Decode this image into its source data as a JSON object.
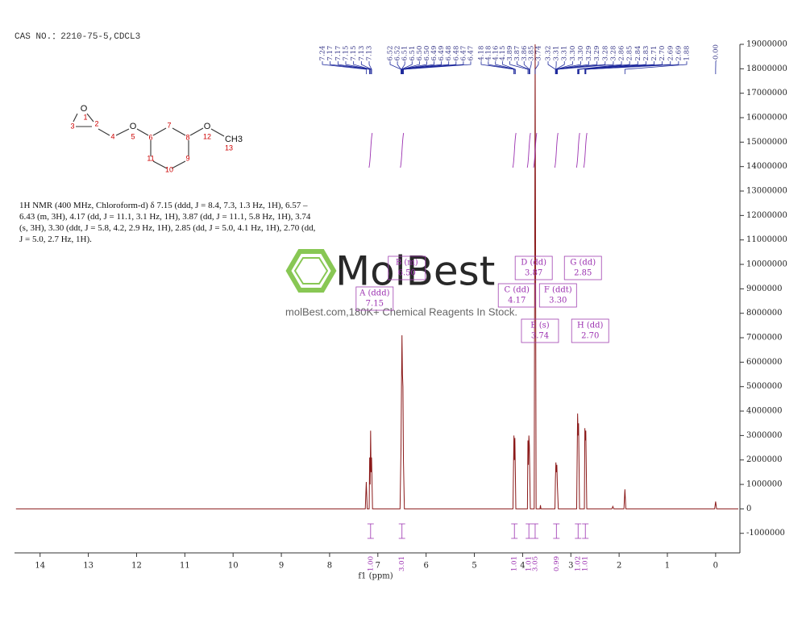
{
  "cas_note": "CAS NO.：2210-75-5,CDCL3",
  "nmr_text": "1H NMR (400 MHz, Chloroform-d) δ 7.15 (ddd, J = 8.4, 7.3, 1.3 Hz, 1H), 6.57 – 6.43 (m, 3H), 4.17 (dd, J = 11.1, 3.1 Hz, 1H), 3.87 (dd, J = 11.1, 5.8 Hz, 1H), 3.74 (s, 3H), 3.30 (ddt, J = 5.8, 4.2, 2.9 Hz, 1H), 2.85 (dd, J = 5.0, 4.1 Hz, 1H), 2.70 (dd, J = 5.0, 2.7 Hz, 1H).",
  "watermark": {
    "brand": "MolBest",
    "tagline": "molBest.com,180K+ Chemical Reagents In Stock."
  },
  "structure": {
    "atoms": [
      "O",
      "1",
      "2",
      "3",
      "4",
      "O",
      "5",
      "6",
      "7",
      "8",
      "9",
      "10",
      "11",
      "O",
      "12",
      "CH3",
      "13"
    ]
  },
  "chart_data": {
    "type": "line",
    "xlabel": "f1 (ppm)",
    "xlim": [
      14.53,
      -0.47
    ],
    "xticks": [
      14,
      13,
      12,
      11,
      10,
      9,
      8,
      7,
      6,
      5,
      4,
      3,
      2,
      1,
      0
    ],
    "ylim": [
      -1800000,
      19000000
    ],
    "yticks": [
      -1000000,
      0,
      1000000,
      2000000,
      3000000,
      4000000,
      5000000,
      6000000,
      7000000,
      8000000,
      9000000,
      10000000,
      11000000,
      12000000,
      13000000,
      14000000,
      15000000,
      16000000,
      17000000,
      18000000,
      19000000
    ],
    "color": "#8b1a1a",
    "x": [
      14.5,
      7.26,
      7.24,
      7.22,
      7.18,
      7.17,
      7.16,
      7.15,
      7.14,
      7.13,
      7.11,
      6.54,
      6.52,
      6.51,
      6.5,
      6.49,
      6.48,
      6.47,
      6.45,
      4.2,
      4.18,
      4.17,
      4.16,
      4.14,
      3.9,
      3.89,
      3.88,
      3.87,
      3.86,
      3.84,
      3.76,
      3.74,
      3.72,
      3.64,
      3.63,
      3.62,
      3.33,
      3.32,
      3.31,
      3.3,
      3.29,
      3.28,
      3.26,
      2.88,
      2.86,
      2.85,
      2.84,
      2.82,
      2.72,
      2.71,
      2.7,
      2.69,
      2.67,
      2.15,
      2.13,
      2.11,
      1.9,
      1.88,
      1.86,
      0.02,
      0,
      -0.02,
      -0.47
    ],
    "values": [
      0,
      0,
      1100000,
      0,
      0,
      2100000,
      1000000,
      3200000,
      1500000,
      2100000,
      0,
      0,
      2500000,
      5000000,
      7100000,
      5500000,
      5000000,
      2000000,
      0,
      0,
      3000000,
      2000000,
      2900000,
      0,
      0,
      2800000,
      1800000,
      3000000,
      2600000,
      0,
      0,
      19000000,
      0,
      0,
      150000,
      0,
      0,
      1200000,
      1900000,
      1500000,
      1800000,
      1000000,
      0,
      0,
      3900000,
      3000000,
      3500000,
      0,
      0,
      3300000,
      2800000,
      3200000,
      0,
      0,
      100000,
      0,
      0,
      800000,
      0,
      0,
      300000,
      0,
      0
    ],
    "peak_groups": [
      [
        "7.24",
        "7.17",
        "7.17",
        "7.15",
        "7.15",
        "7.13",
        "7.13"
      ],
      [
        "6.52",
        "6.52",
        "6.51",
        "6.51",
        "6.50",
        "6.50",
        "6.49",
        "6.49",
        "6.48",
        "6.48",
        "6.47",
        "6.47"
      ],
      [
        "4.18",
        "4.18",
        "4.16",
        "4.15",
        "3.89",
        "3.87",
        "3.86",
        "3.85",
        "3.74"
      ],
      [
        "3.32",
        "3.31",
        "3.31",
        "3.30",
        "3.30",
        "3.29",
        "3.29",
        "3.28",
        "3.28",
        "2.86",
        "2.85",
        "2.84",
        "2.83",
        "2.71",
        "2.70",
        "2.69",
        "2.69",
        "1.88"
      ],
      [
        "-0.00"
      ]
    ],
    "integrals": [
      {
        "ppm": 7.15,
        "value": 1,
        "label": "1.00"
      },
      {
        "ppm": 6.5,
        "value": 3.01,
        "label": "3.01"
      },
      {
        "ppm": 4.17,
        "value": 1.01,
        "label": "1.01"
      },
      {
        "ppm": 3.87,
        "value": 1.01,
        "label": "1.01"
      },
      {
        "ppm": 3.74,
        "value": 3.05,
        "label": "3.05"
      },
      {
        "ppm": 3.3,
        "value": 0.99,
        "label": "0.99"
      },
      {
        "ppm": 2.85,
        "value": 1.02,
        "label": "1.02"
      },
      {
        "ppm": 2.7,
        "value": 1.01,
        "label": "1.01"
      }
    ],
    "multiplets": [
      {
        "label": "A (ddd)",
        "shift": "7.15"
      },
      {
        "label": "B (m)",
        "shift": "6.50"
      },
      {
        "label": "C (dd)",
        "shift": "4.17"
      },
      {
        "label": "D (dd)",
        "shift": "3.87"
      },
      {
        "label": "E (s)",
        "shift": "3.74"
      },
      {
        "label": "F (ddt)",
        "shift": "3.30"
      },
      {
        "label": "G (dd)",
        "shift": "2.85"
      },
      {
        "label": "H (dd)",
        "shift": "2.70"
      }
    ]
  }
}
